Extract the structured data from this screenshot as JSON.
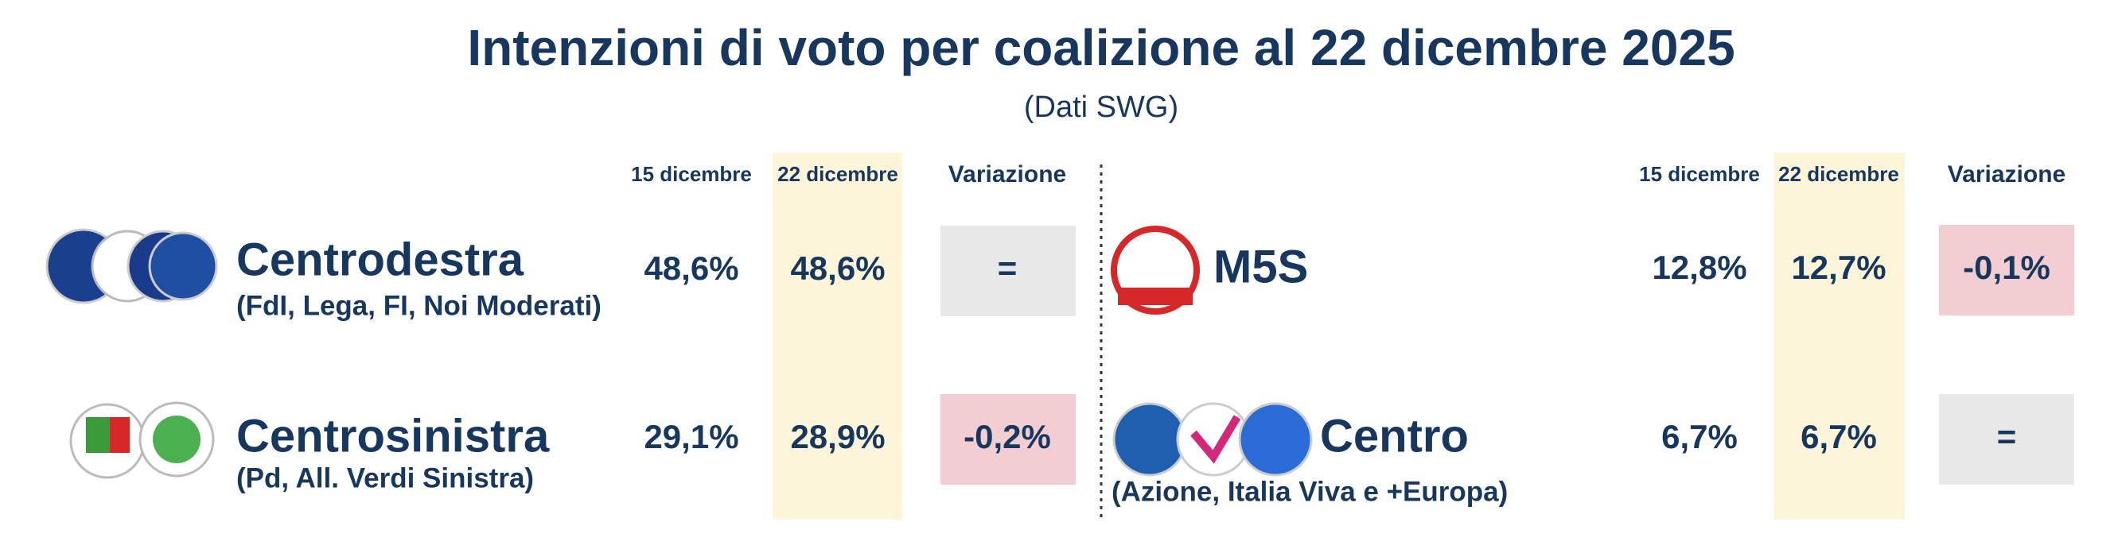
{
  "title": "Intenzioni di voto per coalizione al 22 dicembre 2025",
  "subtitle": "(Dati SWG)",
  "panels": [
    {
      "columns": [
        "15 dicembre",
        "22 dicembre",
        "Variazione"
      ],
      "rows": [
        {
          "name": "Centrodestra",
          "detail": "(FdI, Lega, FI, Noi Moderati)",
          "values": [
            "48,6%",
            "48,6%",
            "="
          ]
        },
        {
          "name": "Centrosinistra",
          "detail": "(Pd, All. Verdi Sinistra)",
          "values": [
            "29,1%",
            "28,9%",
            "-0,2%"
          ]
        }
      ]
    },
    {
      "columns": [
        "15 dicembre",
        "22 dicembre",
        "Variazione"
      ],
      "rows": [
        {
          "name": "M5S",
          "values": [
            "12,8%",
            "12,7%",
            "-0,1%"
          ]
        },
        {
          "name": "Centro",
          "detail": "(Azione, Italia Viva e +Europa)",
          "values": [
            "6,7%",
            "6,7%",
            "="
          ]
        }
      ]
    }
  ]
}
